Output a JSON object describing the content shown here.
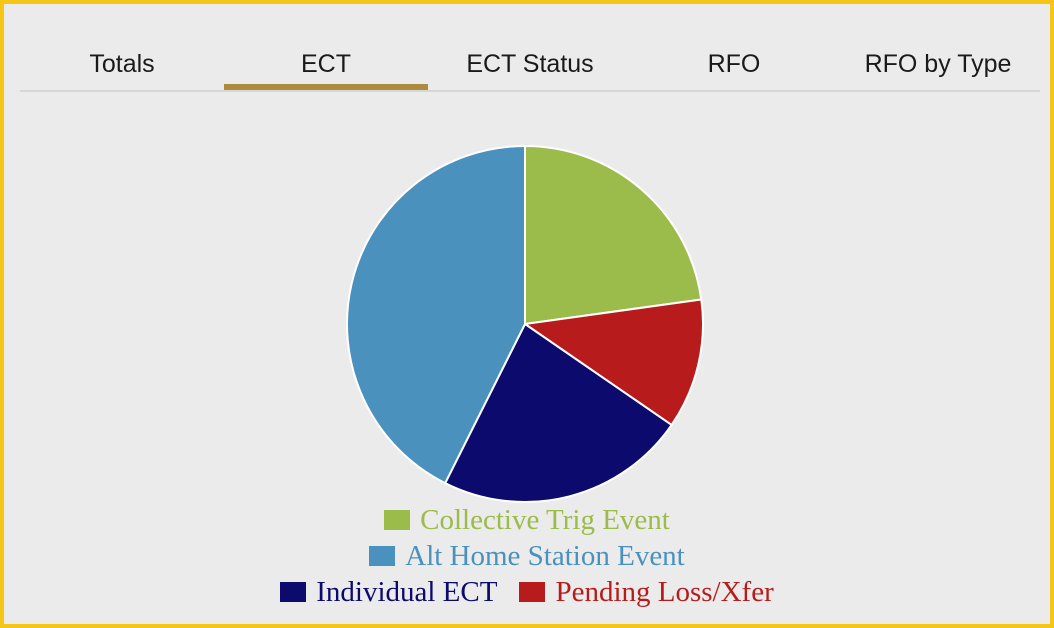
{
  "theme": {
    "accent": "#ad8a3c",
    "frame_border": "#f5c518",
    "background": "#ebebeb"
  },
  "tabs": [
    {
      "label": "Totals",
      "active": false
    },
    {
      "label": "ECT",
      "active": true
    },
    {
      "label": "ECT Status",
      "active": false
    },
    {
      "label": "RFO",
      "active": false
    },
    {
      "label": "RFO by Type",
      "active": false
    }
  ],
  "chart_data": {
    "type": "pie",
    "title": "",
    "legend_placement": "bottom",
    "start": "top, clockwise",
    "slices": [
      {
        "label": "Collective Trig Event",
        "value": 22.8,
        "color": "#9bbb4a"
      },
      {
        "label": "Pending Loss/Xfer",
        "value": 11.8,
        "color": "#b81b1b"
      },
      {
        "label": "Individual ECT",
        "value": 22.8,
        "color": "#0d0a6e"
      },
      {
        "label": "Alt Home Station Event",
        "value": 42.6,
        "color": "#4a91bd"
      }
    ],
    "legend_rows": [
      [
        "Collective Trig Event"
      ],
      [
        "Alt Home Station Event"
      ],
      [
        "Individual ECT",
        "Pending Loss/Xfer"
      ]
    ]
  }
}
